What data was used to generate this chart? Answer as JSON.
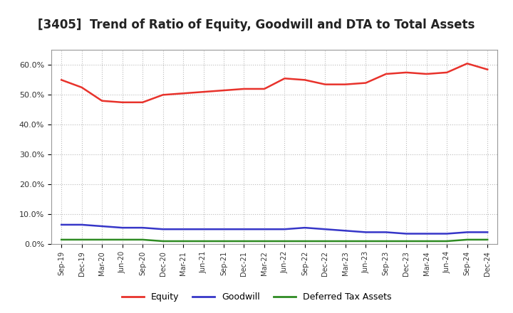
{
  "title": "[3405]  Trend of Ratio of Equity, Goodwill and DTA to Total Assets",
  "x_labels": [
    "Sep-19",
    "Dec-19",
    "Mar-20",
    "Jun-20",
    "Sep-20",
    "Dec-20",
    "Mar-21",
    "Jun-21",
    "Sep-21",
    "Dec-21",
    "Mar-22",
    "Jun-22",
    "Sep-22",
    "Dec-22",
    "Mar-23",
    "Jun-23",
    "Sep-23",
    "Dec-23",
    "Mar-24",
    "Jun-24",
    "Sep-24",
    "Dec-24"
  ],
  "equity": [
    55.0,
    52.5,
    48.0,
    47.5,
    47.5,
    50.0,
    50.5,
    51.0,
    51.5,
    52.0,
    52.0,
    55.5,
    55.0,
    53.5,
    53.5,
    54.0,
    57.0,
    57.5,
    57.0,
    57.5,
    60.5,
    58.5
  ],
  "goodwill": [
    6.5,
    6.5,
    6.0,
    5.5,
    5.5,
    5.0,
    5.0,
    5.0,
    5.0,
    5.0,
    5.0,
    5.0,
    5.5,
    5.0,
    4.5,
    4.0,
    4.0,
    3.5,
    3.5,
    3.5,
    4.0,
    4.0
  ],
  "dta": [
    1.5,
    1.5,
    1.5,
    1.5,
    1.5,
    1.0,
    1.0,
    1.0,
    1.0,
    1.0,
    1.0,
    1.0,
    1.0,
    1.0,
    1.0,
    1.0,
    1.0,
    1.0,
    1.0,
    1.0,
    1.5,
    1.5
  ],
  "equity_color": "#e8322b",
  "goodwill_color": "#3636c8",
  "dta_color": "#2e8b22",
  "ylim": [
    0,
    65
  ],
  "yticks": [
    0,
    10,
    20,
    30,
    40,
    50,
    60
  ],
  "ytick_labels": [
    "0.0%",
    "10.0%",
    "20.0%",
    "30.0%",
    "40.0%",
    "50.0%",
    "60.0%"
  ],
  "legend_labels": [
    "Equity",
    "Goodwill",
    "Deferred Tax Assets"
  ],
  "background_color": "#ffffff",
  "plot_bg_color": "#ffffff",
  "grid_color": "#bbbbbb",
  "title_fontsize": 12,
  "line_width": 1.8
}
